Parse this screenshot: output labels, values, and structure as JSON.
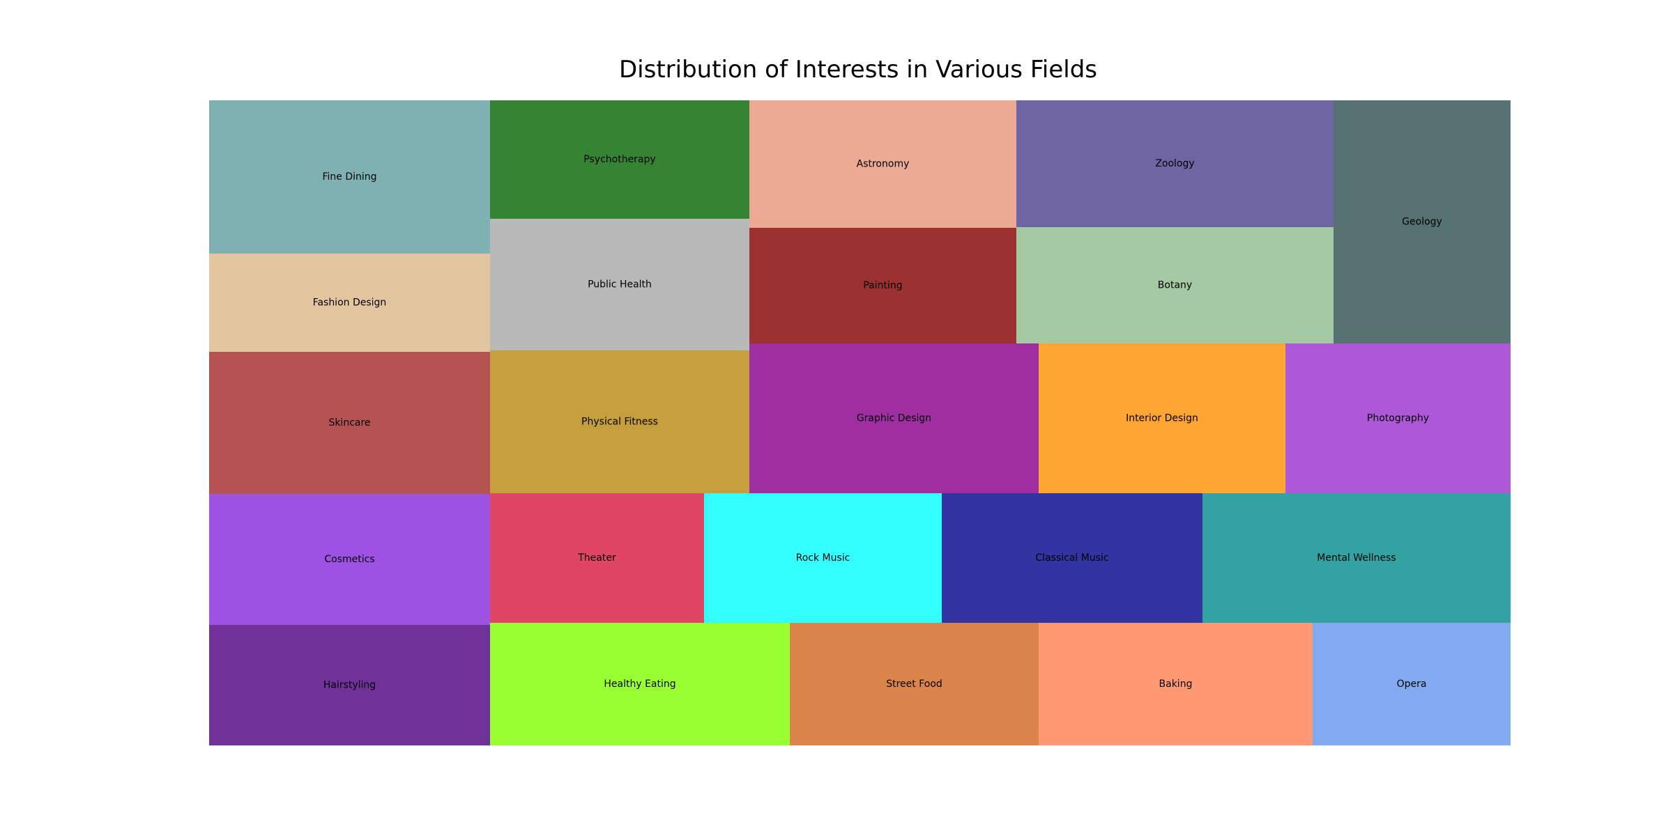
{
  "chart_data": {
    "type": "treemap",
    "title": "Distribution of Interests in Various Fields",
    "columns": [
      {
        "tiles": [
          {
            "label": "Fine Dining",
            "value": 11,
            "color": "#80b1b2"
          },
          {
            "label": "Fashion Design",
            "value": 7,
            "color": "#e3c69f"
          },
          {
            "label": "Skincare",
            "value": 10,
            "color": "#b55352"
          },
          {
            "label": "Cosmetics",
            "value": 9.5,
            "color": "#9d52e4"
          },
          {
            "label": "Hairstyling",
            "value": 8.6,
            "color": "#703199"
          }
        ]
      },
      {
        "tiles": [
          {
            "label": "Psychotherapy",
            "value": 7,
            "color": "#358434"
          },
          {
            "label": "Public Health",
            "value": 7.8,
            "color": "#b9b9b9"
          },
          {
            "label": "Physical Fitness",
            "value": 8.4,
            "color": "#c59e3d"
          }
        ]
      },
      {
        "tiles": [
          {
            "label": "Astronomy",
            "value": 7.6,
            "color": "#eca994"
          },
          {
            "label": "Painting",
            "value": 7,
            "color": "#9c3131"
          }
        ]
      },
      {
        "tiles": [
          {
            "label": "Zoology",
            "value": 9,
            "color": "#6e65a2"
          },
          {
            "label": "Botany",
            "value": 8.2,
            "color": "#a5c9a3"
          }
        ]
      },
      {
        "tiles": [
          {
            "label": "Geology",
            "value": 9.6,
            "color": "#577272"
          }
        ]
      },
      {
        "tiles": [
          {
            "label": "Graphic Design",
            "value": 10,
            "color": "#9e2fa1"
          },
          {
            "label": "Interior Design",
            "value": 8.6,
            "color": "#ffa533"
          },
          {
            "label": "Photography",
            "value": 7.9,
            "color": "#ad59d7"
          }
        ]
      },
      {
        "tiles": [
          {
            "label": "Theater",
            "value": 6.5,
            "color": "#e04563"
          },
          {
            "label": "Rock Music",
            "value": 7.2,
            "color": "#33ffff"
          },
          {
            "label": "Classical Music",
            "value": 8,
            "color": "#3333a1"
          },
          {
            "label": "Mental Wellness",
            "value": 9.4,
            "color": "#32a2a2"
          }
        ]
      },
      {
        "tiles": [
          {
            "label": "Healthy Eating",
            "value": 8.6,
            "color": "#98ff33"
          },
          {
            "label": "Street Food",
            "value": 7.2,
            "color": "#db854a"
          },
          {
            "label": "Baking",
            "value": 7.9,
            "color": "#ff9873"
          },
          {
            "label": "Opera",
            "value": 5.7,
            "color": "#82aaf0"
          }
        ]
      }
    ]
  }
}
